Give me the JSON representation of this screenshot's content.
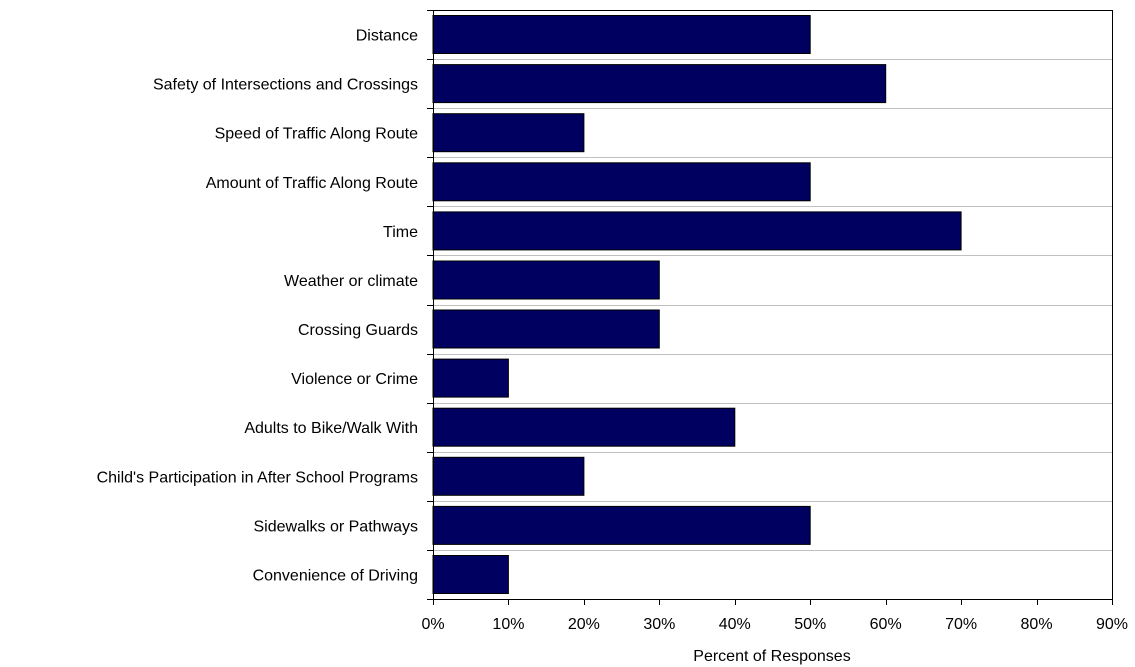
{
  "chart_data": {
    "type": "bar",
    "orientation": "horizontal",
    "categories": [
      "Distance",
      "Safety of Intersections and Crossings",
      "Speed of Traffic Along Route",
      "Amount of Traffic Along Route",
      "Time",
      "Weather or climate",
      "Crossing Guards",
      "Violence or Crime",
      "Adults to Bike/Walk With",
      "Child's Participation in After School Programs",
      "Sidewalks or Pathways",
      "Convenience of Driving"
    ],
    "values": [
      50,
      60,
      20,
      50,
      70,
      30,
      30,
      10,
      40,
      20,
      50,
      10
    ],
    "title": "",
    "xlabel": "Percent of Responses",
    "ylabel": "",
    "xlim": [
      0,
      90
    ],
    "xticks": [
      0,
      10,
      20,
      30,
      40,
      50,
      60,
      70,
      80,
      90
    ],
    "xtick_labels": [
      "0%",
      "10%",
      "20%",
      "30%",
      "40%",
      "50%",
      "60%",
      "70%",
      "80%",
      "90%"
    ],
    "grid": "vertical gridlines at each tick",
    "legend": "none",
    "bar_color": "#000060",
    "grid_color": "#c0c0c0"
  }
}
